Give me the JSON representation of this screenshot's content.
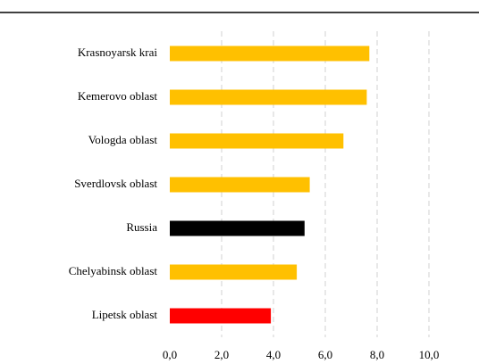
{
  "chart_data": {
    "type": "barh",
    "categories": [
      "Krasnoyarsk krai",
      "Kemerovo oblast",
      "Vologda oblast",
      "Sverdlovsk oblast",
      "Russia",
      "Chelyabinsk oblast",
      "Lipetsk oblast"
    ],
    "values": [
      7.7,
      7.6,
      6.7,
      5.4,
      5.2,
      4.9,
      3.9
    ],
    "colors": [
      "#ffc000",
      "#ffc000",
      "#ffc000",
      "#ffc000",
      "#000000",
      "#ffc000",
      "#ff0000"
    ],
    "xlim": [
      0,
      10
    ],
    "xticks": [
      {
        "value": 0,
        "label": "0,0"
      },
      {
        "value": 2,
        "label": "2,0"
      },
      {
        "value": 4,
        "label": "4,0"
      },
      {
        "value": 6,
        "label": "6,0"
      },
      {
        "value": 8,
        "label": "8,0"
      },
      {
        "value": 10,
        "label": "10,0"
      }
    ],
    "grid": true
  }
}
